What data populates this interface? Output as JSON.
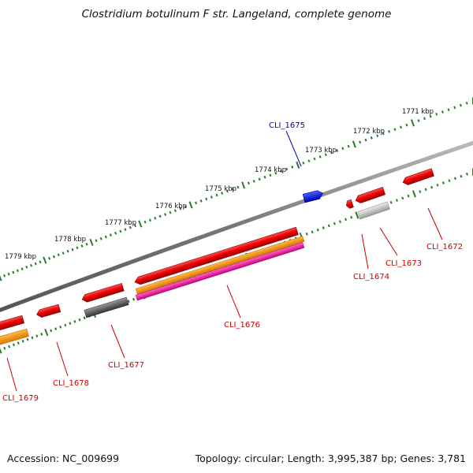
{
  "title": "Clostridium botulinum F str. Langeland, complete genome",
  "footer": {
    "accession": "Accession: NC_009699",
    "summary": "Topology: circular; Length: 3,995,387 bp; Genes: 3,781"
  },
  "scale_labels": [
    "1771 kbp",
    "1772 kbp",
    "1773 kbp",
    "1774 kbp",
    "1775 kbp",
    "1776 kbp",
    "1777 kbp",
    "1778 kbp",
    "1779 kbp"
  ],
  "colors": {
    "cds": "#ee1111",
    "selected": "#1122cc",
    "rna": "#ff8800",
    "gene_dark": "#555555",
    "gene_light": "#bbbbbb",
    "magenta": "#ee1188",
    "tick": "#2a7a2a",
    "backbone": "#888888"
  },
  "genes": [
    {
      "id": "CLI_1672",
      "label": "CLI_1672",
      "color": "#cc0000"
    },
    {
      "id": "CLI_1673",
      "label": "CLI_1673",
      "color": "#cc0000"
    },
    {
      "id": "CLI_1674",
      "label": "CLI_1674",
      "color": "#cc0000"
    },
    {
      "id": "CLI_1675",
      "label": "CLI_1675",
      "color": "#0000bb"
    },
    {
      "id": "CLI_1676",
      "label": "CLI_1676",
      "color": "#cc0000"
    },
    {
      "id": "CLI_1677",
      "label": "CLI_1677",
      "color": "#cc0000"
    },
    {
      "id": "CLI_1678",
      "label": "CLI_1678",
      "color": "#cc0000"
    },
    {
      "id": "CLI_1679",
      "label": "CLI_1679",
      "color": "#cc0000"
    }
  ]
}
